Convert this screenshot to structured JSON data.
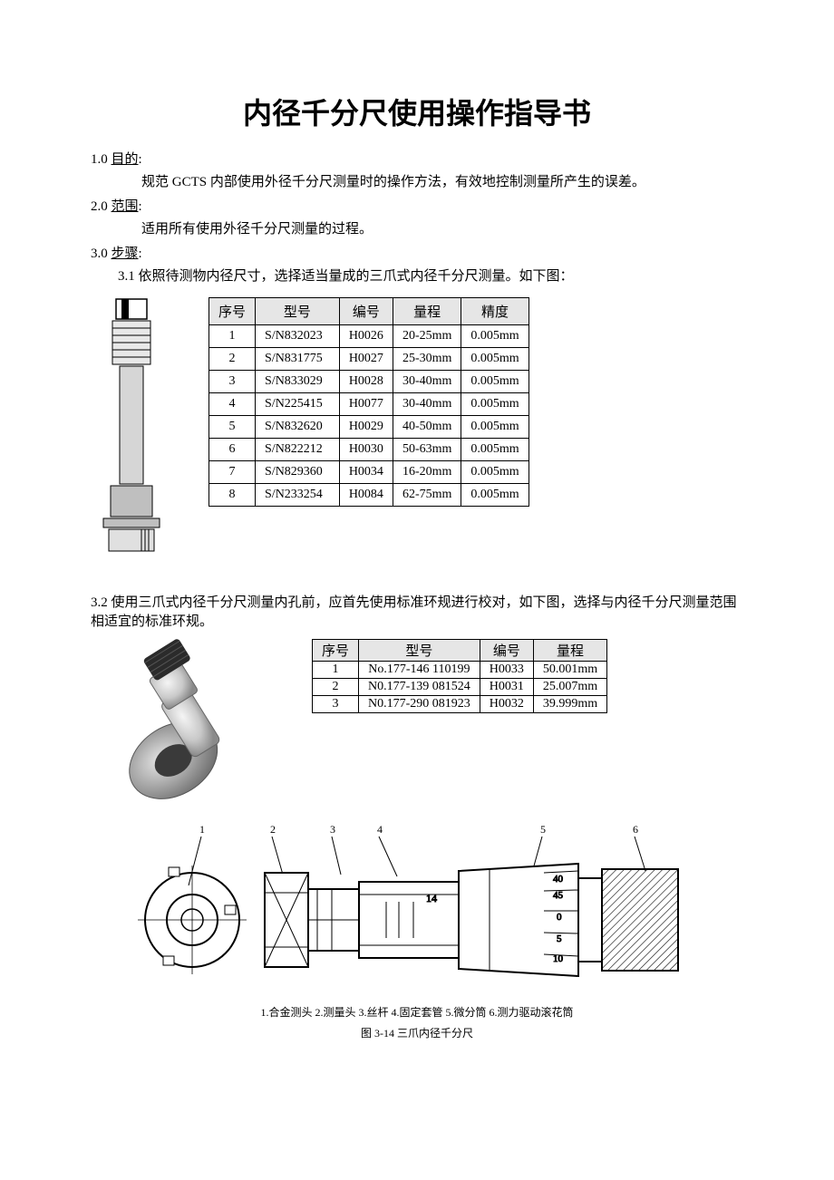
{
  "title": "内径千分尺使用操作指导书",
  "s1": {
    "num": "1.0 ",
    "label": "目的",
    "colon": ":"
  },
  "s1_text": "规范 GCTS 内部使用外径千分尺测量时的操作方法，有效地控制测量所产生的误差。",
  "s2": {
    "num": "2.0 ",
    "label": "范围",
    "colon": ":"
  },
  "s2_text": "适用所有使用外径千分尺测量的过程。",
  "s3": {
    "num": "3.0 ",
    "label": "步骤",
    "colon": ":"
  },
  "s3_1": "3.1 依照待测物内径尺寸，选择适当量成的三爪式内径千分尺测量。如下图：",
  "table1": {
    "headers": [
      "序号",
      "型号",
      "编号",
      "量程",
      "精度"
    ],
    "rows": [
      [
        "1",
        "S/N832023",
        "H0026",
        "20-25mm",
        "0.005mm"
      ],
      [
        "2",
        "S/N831775",
        "H0027",
        "25-30mm",
        "0.005mm"
      ],
      [
        "3",
        "S/N833029",
        "H0028",
        "30-40mm",
        "0.005mm"
      ],
      [
        "4",
        "S/N225415",
        "H0077",
        "30-40mm",
        "0.005mm"
      ],
      [
        "5",
        "S/N832620",
        "H0029",
        "40-50mm",
        "0.005mm"
      ],
      [
        "6",
        "S/N822212",
        "H0030",
        "50-63mm",
        "0.005mm"
      ],
      [
        "7",
        "S/N829360",
        "H0034",
        "16-20mm",
        "0.005mm"
      ],
      [
        "8",
        "S/N233254",
        "H0084",
        "62-75mm",
        "0.005mm"
      ]
    ]
  },
  "s3_2": "3.2 使用三爪式内径千分尺测量内孔前，应首先使用标准环规进行校对，如下图，选择与内径千分尺测量范围相适宜的标准环规。",
  "table2": {
    "headers": [
      "序号",
      "型号",
      "编号",
      "量程"
    ],
    "rows": [
      [
        "1",
        "No.177-146 110199",
        "H0033",
        "50.001mm"
      ],
      [
        "2",
        "N0.177-139 081524",
        "H0031",
        "25.007mm"
      ],
      [
        "3",
        "N0.177-290 081923",
        "H0032",
        "39.999mm"
      ]
    ]
  },
  "parts": [
    "1.合金测头",
    "2.测量头",
    "3.丝杆",
    "4.固定套管",
    "5.微分筒",
    "6.测力驱动滚花筒"
  ],
  "fig_caption": "图 3-14  三爪内径千分尺",
  "svg1_label": "micrometer-tool-illustration",
  "svg2_label": "micrometer-with-ring-gauge",
  "svg3_label": "three-jaw-micrometer-diagram"
}
